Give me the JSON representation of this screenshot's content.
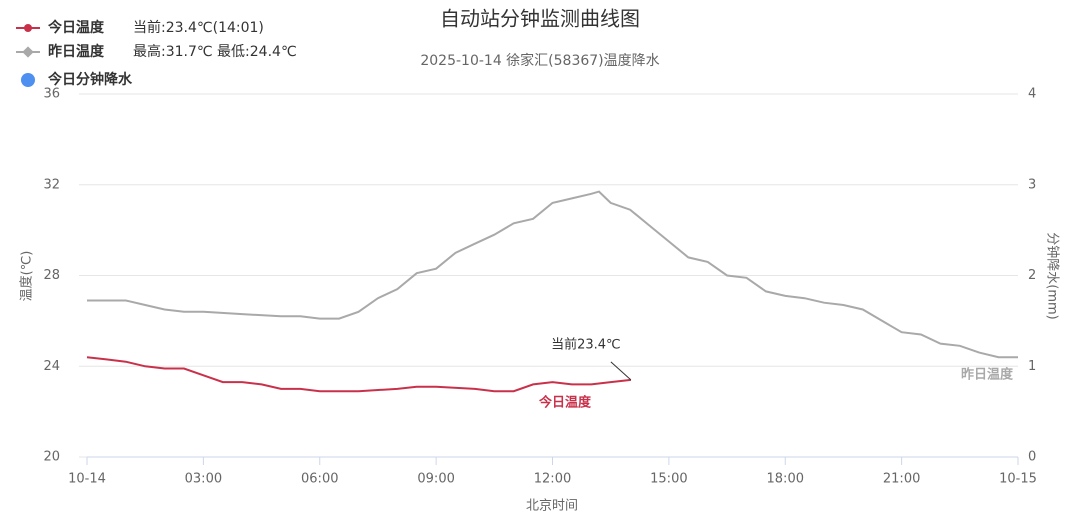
{
  "chart_data": {
    "type": "line",
    "title": "自动站分钟监测曲线图",
    "subtitle": "2025-10-14 徐家汇(58367)温度降水",
    "x_label": "北京时间",
    "y_label": "温度(℃)",
    "y2_label": "分钟降水(mm)",
    "xlim": [
      0,
      24
    ],
    "xticks": [
      {
        "value": 0,
        "label": "10-14"
      },
      {
        "value": 3,
        "label": "03:00"
      },
      {
        "value": 6,
        "label": "06:00"
      },
      {
        "value": 9,
        "label": "09:00"
      },
      {
        "value": 12,
        "label": "12:00"
      },
      {
        "value": 15,
        "label": "15:00"
      },
      {
        "value": 18,
        "label": "18:00"
      },
      {
        "value": 21,
        "label": "21:00"
      },
      {
        "value": 24,
        "label": "10-15"
      }
    ],
    "ylim": [
      20,
      36
    ],
    "yticks": [
      20,
      24,
      28,
      32,
      36
    ],
    "y2lim": [
      0,
      4
    ],
    "y2ticks": [
      0,
      1,
      2,
      3,
      4
    ],
    "grid": true,
    "annotations": [
      "当前23.4℃"
    ],
    "series": [
      {
        "name": "今日温度",
        "note": "当前:23.4℃(14:01)",
        "color": "#c9314b",
        "x": [
          0,
          0.5,
          1,
          1.5,
          2,
          2.5,
          3,
          3.5,
          4,
          4.5,
          5,
          5.5,
          6,
          7,
          8,
          8.5,
          9,
          10,
          10.5,
          11,
          11.5,
          12,
          12.5,
          13,
          13.5,
          14.02
        ],
        "values": [
          24.4,
          24.3,
          24.2,
          24.0,
          23.9,
          23.9,
          23.6,
          23.3,
          23.3,
          23.2,
          23.0,
          23.0,
          22.9,
          22.9,
          23.0,
          23.1,
          23.1,
          23.0,
          22.9,
          22.9,
          23.2,
          23.3,
          23.2,
          23.2,
          23.3,
          23.4
        ]
      },
      {
        "name": "昨日温度",
        "note": "最高:31.7℃ 最低:24.4℃",
        "color": "#a9a9a9",
        "x": [
          0,
          1,
          1.5,
          2,
          2.5,
          3,
          4,
          5,
          5.5,
          6,
          6.5,
          7,
          7.5,
          8,
          8.5,
          9,
          9.5,
          10,
          10.5,
          11,
          11.5,
          12,
          12.5,
          13,
          13.2,
          13.5,
          14,
          14.5,
          15,
          15.5,
          16,
          16.5,
          17,
          17.5,
          18,
          18.5,
          19,
          19.5,
          20,
          20.5,
          21,
          21.5,
          22,
          22.5,
          23,
          23.5,
          24
        ],
        "values": [
          26.9,
          26.9,
          26.7,
          26.5,
          26.4,
          26.4,
          26.3,
          26.2,
          26.2,
          26.1,
          26.1,
          26.4,
          27.0,
          27.4,
          28.1,
          28.3,
          29.0,
          29.4,
          29.8,
          30.3,
          30.5,
          31.2,
          31.4,
          31.6,
          31.7,
          31.2,
          30.9,
          30.2,
          29.5,
          28.8,
          28.6,
          28.0,
          27.9,
          27.3,
          27.1,
          27.0,
          26.8,
          26.7,
          26.5,
          26.0,
          25.5,
          25.4,
          25.0,
          24.9,
          24.6,
          24.4,
          24.4
        ]
      },
      {
        "name": "今日分钟降水",
        "color": "#4d90f0",
        "axis": "y2",
        "x": [],
        "values": []
      }
    ]
  }
}
